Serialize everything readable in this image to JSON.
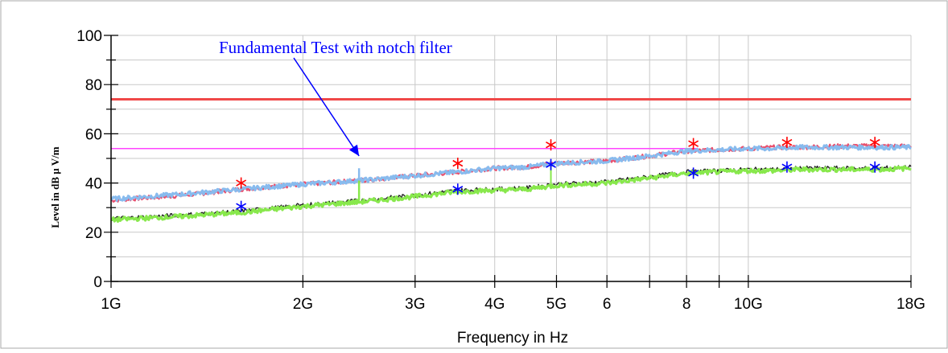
{
  "chart_data": {
    "type": "line",
    "title": "",
    "xlabel": "Frequency in Hz",
    "ylabel": "Level in dB µ V/m",
    "xscale": "log",
    "xlim": [
      1,
      18
    ],
    "ylim": [
      0,
      100
    ],
    "x_unit": "GHz",
    "x_ticks": [
      {
        "value": 1,
        "label": "1G"
      },
      {
        "value": 2,
        "label": "2G"
      },
      {
        "value": 3,
        "label": "3G"
      },
      {
        "value": 4,
        "label": "4G"
      },
      {
        "value": 5,
        "label": "5G"
      },
      {
        "value": 6,
        "label": "6"
      },
      {
        "value": 8,
        "label": "8"
      },
      {
        "value": 10,
        "label": "10G"
      },
      {
        "value": 18,
        "label": "18G"
      }
    ],
    "x_minor_ticks": [
      7,
      9
    ],
    "y_ticks": [
      0,
      20,
      40,
      60,
      80,
      100
    ],
    "grid": true,
    "annotation": {
      "text": "Fundamental Test with notch filter",
      "color": "#0000ff",
      "arrow_to": {
        "x": 2.45,
        "y": 51
      }
    },
    "limit_lines": [
      {
        "y": 74,
        "color": "#f04848"
      },
      {
        "y": 54,
        "color": "#ff44ff",
        "x_end": 8.3
      }
    ],
    "series": [
      {
        "color": "#e8506e",
        "style": "noisy",
        "x": [
          1,
          1.3,
          1.6,
          2,
          2.3,
          2.6,
          3,
          3.5,
          4,
          4.5,
          5,
          5.5,
          6,
          7,
          8,
          9,
          10,
          11,
          12,
          14,
          16,
          18
        ],
        "y": [
          33,
          35,
          37.5,
          39.5,
          40.5,
          41.5,
          43,
          44.5,
          46,
          46.5,
          48,
          48.5,
          49,
          51,
          53,
          53.5,
          54,
          54.5,
          54.5,
          55,
          55,
          55
        ]
      },
      {
        "color": "#88bbee",
        "style": "noisy",
        "x": [
          1,
          1.3,
          1.6,
          2,
          2.3,
          2.6,
          3,
          3.5,
          4,
          4.5,
          5,
          5.5,
          6,
          7,
          8,
          9,
          10,
          11,
          12,
          14,
          16,
          18
        ],
        "y": [
          33.5,
          35.5,
          37.5,
          39.5,
          40.5,
          41.5,
          43,
          44.5,
          46,
          46.5,
          48,
          48.5,
          49,
          51,
          53,
          53.5,
          54,
          54,
          54.5,
          54.5,
          54.5,
          54.5
        ],
        "spike": {
          "x": 2.45,
          "y": 46,
          "base": 41
        }
      },
      {
        "color": "#222222",
        "style": "noisy",
        "x": [
          1,
          1.3,
          1.6,
          2,
          2.5,
          3,
          3.5,
          4,
          4.5,
          5,
          5.5,
          6,
          7,
          8,
          9,
          10,
          11,
          12,
          14,
          16,
          18
        ],
        "y": [
          25.5,
          27,
          28.5,
          31,
          33,
          35,
          37,
          37.5,
          38,
          39.5,
          40,
          40.5,
          42.5,
          44.5,
          45,
          45.5,
          45.5,
          46,
          46,
          46,
          46.5
        ]
      },
      {
        "color": "#88e84c",
        "style": "noisy",
        "x": [
          1,
          1.3,
          1.6,
          2,
          2.5,
          3,
          3.5,
          4,
          4.5,
          5,
          5.5,
          6,
          7,
          8,
          9,
          10,
          11,
          12,
          14,
          16,
          18
        ],
        "y": [
          25,
          26.5,
          28,
          30.5,
          32.5,
          34.5,
          36.5,
          37,
          37.5,
          39,
          39.5,
          40,
          42,
          44,
          44.5,
          45,
          45,
          45.5,
          45.5,
          45.5,
          46
        ],
        "spike": {
          "x": 2.45,
          "y": 41,
          "base": 33
        },
        "spike2": {
          "x": 4.9,
          "y": 48,
          "base": 39
        }
      },
      {
        "type": "markers",
        "marker": "asterisk",
        "color": "#ff0000",
        "points": [
          [
            1.6,
            40
          ],
          [
            3.5,
            48
          ],
          [
            4.9,
            55.5
          ],
          [
            8.2,
            56
          ],
          [
            11.5,
            56.5
          ],
          [
            15.8,
            56.5
          ]
        ]
      },
      {
        "type": "markers",
        "marker": "asterisk",
        "color": "#0000ff",
        "points": [
          [
            1.6,
            30.5
          ],
          [
            3.5,
            37.5
          ],
          [
            4.9,
            47.5
          ],
          [
            8.2,
            44
          ],
          [
            11.5,
            46.5
          ],
          [
            15.8,
            46.5
          ]
        ]
      }
    ]
  }
}
